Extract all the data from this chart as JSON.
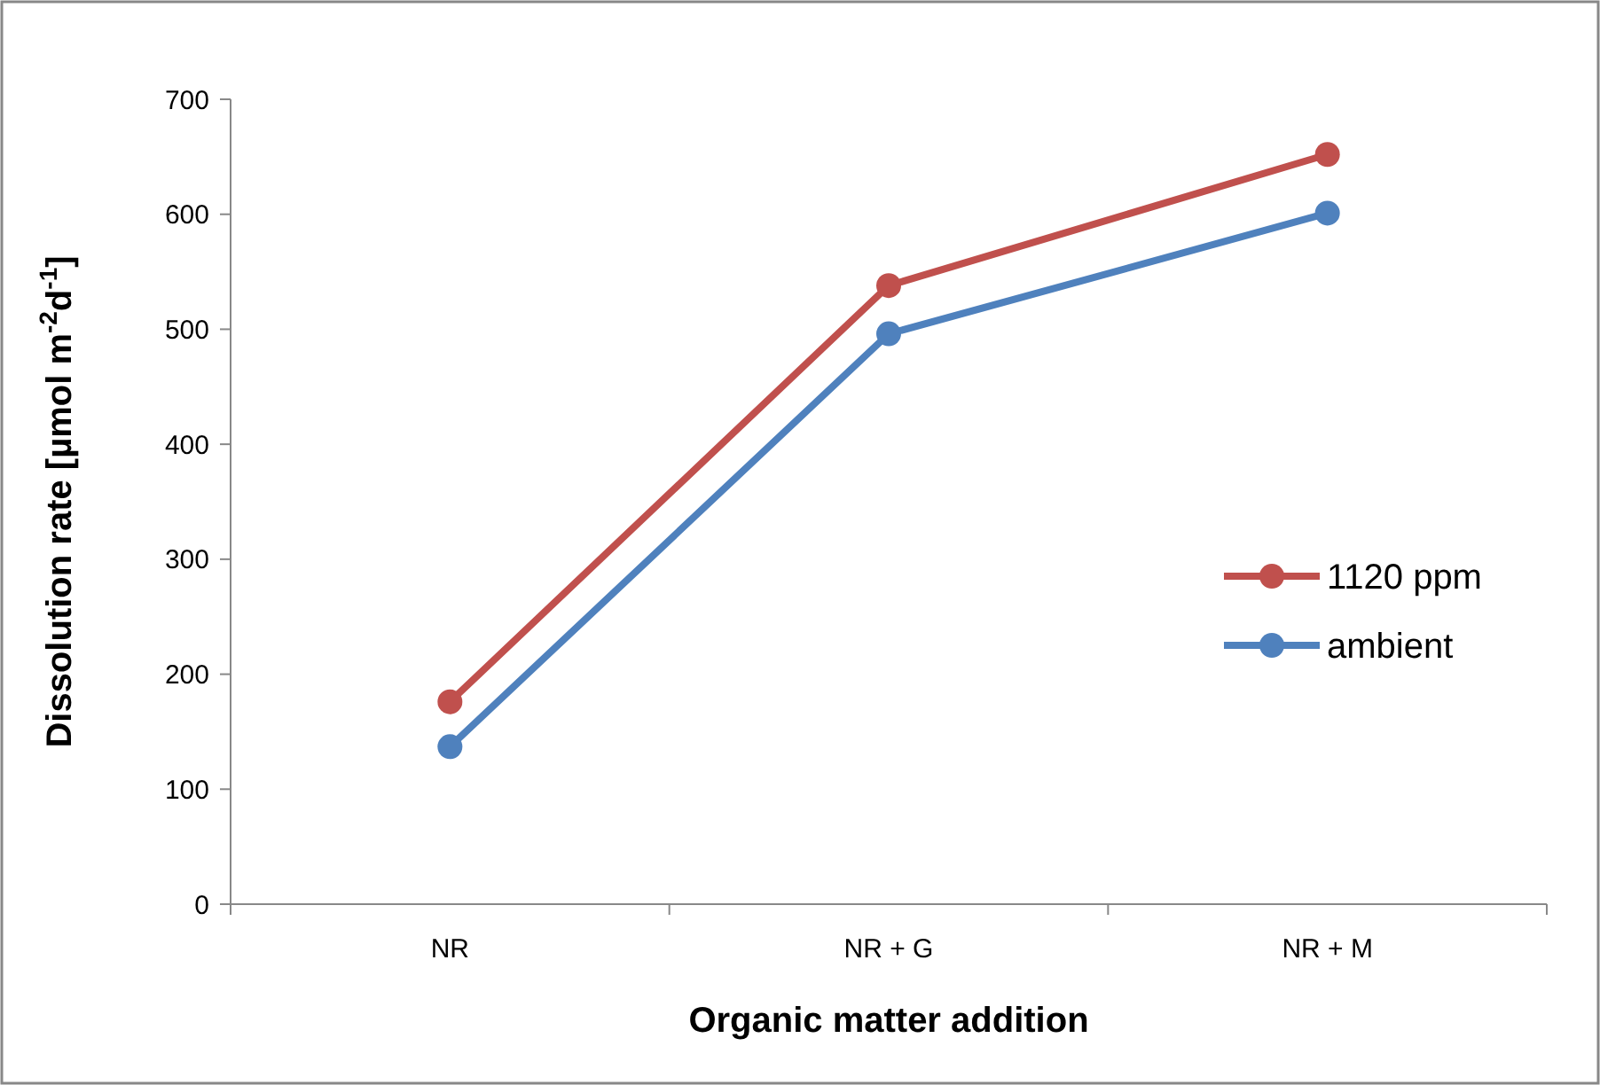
{
  "chart_data": {
    "type": "line",
    "xlabel": "Organic matter addition",
    "ylabel": "Dissolution rate [µmol m$^{-2}$d$^{-1}$]",
    "categories": [
      "NR",
      "NR + G",
      "NR + M"
    ],
    "series": [
      {
        "name": "1120 ppm",
        "color": "#c0504d",
        "values": [
          176,
          538,
          652
        ]
      },
      {
        "name": "ambient",
        "color": "#4f81bd",
        "values": [
          137,
          496,
          601
        ]
      }
    ],
    "ylim": [
      0,
      700
    ],
    "yticks": [
      0,
      100,
      200,
      300,
      400,
      500,
      600,
      700
    ],
    "grid": false,
    "legend": "right",
    "marker": "circle",
    "line_style": "solid"
  }
}
